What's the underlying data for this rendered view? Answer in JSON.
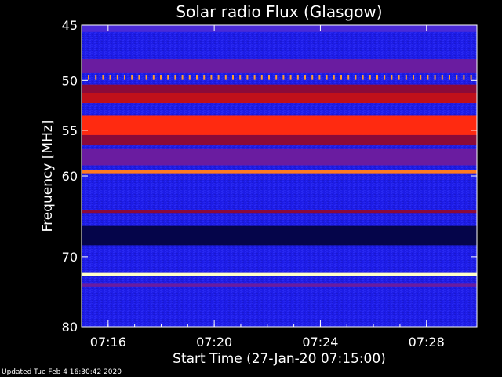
{
  "chart_data": {
    "type": "heatmap",
    "title": "Solar radio Flux (Glasgow)",
    "xlabel": "Start Time (27-Jan-20 07:15:00)",
    "ylabel": "Frequency [MHz]",
    "x_ticks": [
      "07:16",
      "07:20",
      "07:24",
      "07:28"
    ],
    "x_tick_minutes": [
      16,
      20,
      24,
      28
    ],
    "x_range_minutes": [
      15,
      29.9
    ],
    "y_ticks": [
      45,
      50,
      55,
      60,
      70,
      80
    ],
    "y_scale": "log",
    "y_range_mhz": [
      45,
      80
    ],
    "bands": [
      {
        "freq": [
          45.0,
          45.6
        ],
        "level": "blue-purple"
      },
      {
        "freq": [
          48.0,
          49.3
        ],
        "level": "purple"
      },
      {
        "freq": [
          49.5,
          49.8
        ],
        "level": "orange-dotted"
      },
      {
        "freq": [
          50.4,
          51.2
        ],
        "level": "dark-red"
      },
      {
        "freq": [
          51.2,
          52.2
        ],
        "level": "red"
      },
      {
        "freq": [
          53.5,
          55.5
        ],
        "level": "bright-red"
      },
      {
        "freq": [
          55.5,
          56.6
        ],
        "level": "dark-red"
      },
      {
        "freq": [
          57.0,
          58.8
        ],
        "level": "purple"
      },
      {
        "freq": [
          59.3,
          59.7
        ],
        "level": "orange"
      },
      {
        "freq": [
          64.0,
          64.4
        ],
        "level": "dark-red"
      },
      {
        "freq": [
          66.0,
          68.5
        ],
        "level": "dark"
      },
      {
        "freq": [
          72.1,
          72.6
        ],
        "level": "white-hot"
      },
      {
        "freq": [
          73.6,
          74.1
        ],
        "level": "purple"
      }
    ],
    "colors": {
      "background": "#2222ee",
      "dark": "#05054a",
      "purple": "#6a1ca0",
      "blue-purple": "#4a2ad8",
      "dark-red": "#8a0a3a",
      "red": "#c0101a",
      "bright-red": "#ff2a10",
      "orange": "#ff7a20",
      "orange-dotted": "#ff9a30",
      "white-hot": "#ffffc8"
    }
  },
  "footer": {
    "updated": "Updated Tue Feb  4 16:30:42 2020"
  }
}
